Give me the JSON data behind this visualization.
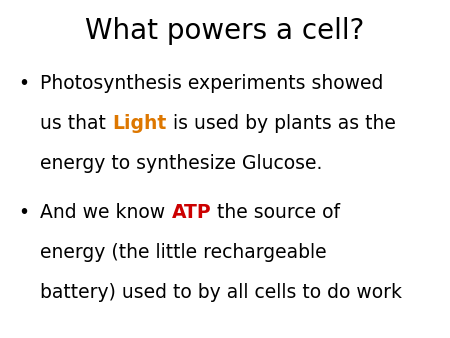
{
  "title": "What powers a cell?",
  "title_fontsize": 20,
  "title_color": "#000000",
  "background_color": "#ffffff",
  "bullet1_lines": [
    [
      {
        "text": "Photosynthesis experiments showed",
        "color": "#000000",
        "bold": false
      }
    ],
    [
      {
        "text": "us that ",
        "color": "#000000",
        "bold": false
      },
      {
        "text": "Light",
        "color": "#dd7700",
        "bold": true
      },
      {
        "text": " is used by plants as the",
        "color": "#000000",
        "bold": false
      }
    ],
    [
      {
        "text": "energy to synthesize Glucose.",
        "color": "#000000",
        "bold": false
      }
    ]
  ],
  "bullet2_lines": [
    [
      {
        "text": "And we know ",
        "color": "#000000",
        "bold": false
      },
      {
        "text": "ATP",
        "color": "#cc0000",
        "bold": true
      },
      {
        "text": " the source of",
        "color": "#000000",
        "bold": false
      }
    ],
    [
      {
        "text": "energy (the little rechargeable",
        "color": "#000000",
        "bold": false
      }
    ],
    [
      {
        "text": "battery) used to by all cells to do work",
        "color": "#000000",
        "bold": false
      }
    ]
  ],
  "body_fontsize": 13.5,
  "figsize": [
    4.5,
    3.38
  ],
  "dpi": 100,
  "font_family": "DejaVu Sans"
}
